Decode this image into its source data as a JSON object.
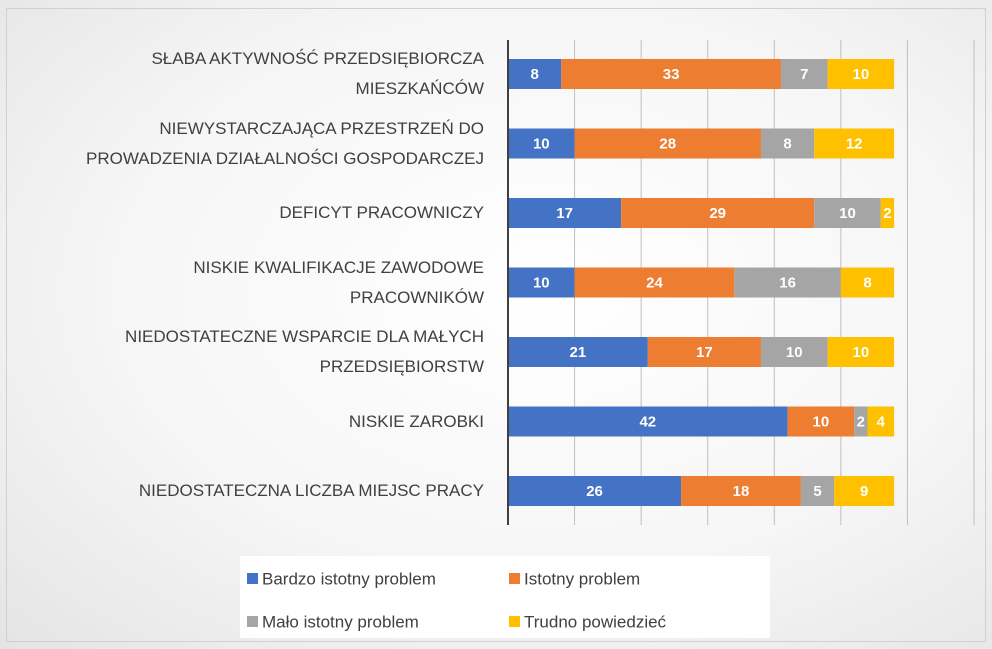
{
  "chart_data": {
    "type": "stacked-bar-horizontal",
    "categories": [
      "SŁABA AKTYWNOŚĆ PRZEDSIĘBIORCZA\nMIESZKAŃCÓW",
      "NIEWYSTARCZAJĄCA PRZESTRZEŃ DO\nPROWADZENIA DZIAŁALNOŚCI GOSPODARCZEJ",
      "DEFICYT PRACOWNICZY",
      "NISKIE KWALIFIKACJE ZAWODOWE\nPRACOWNIKÓW",
      "NIEDOSTATECZNE WSPARCIE DLA MAŁYCH\nPRZEDSIĘBIORSTW",
      "NISKIE ZAROBKI",
      "NIEDOSTATECZNA LICZBA MIEJSC PRACY"
    ],
    "series": [
      {
        "name": "Bardzo istotny problem",
        "color": "#4472c4",
        "values": [
          8,
          10,
          17,
          10,
          21,
          42,
          26
        ]
      },
      {
        "name": "Istotny problem",
        "color": "#ed7d31",
        "values": [
          33,
          28,
          29,
          24,
          17,
          10,
          18
        ]
      },
      {
        "name": "Mało istotny problem",
        "color": "#a5a5a5",
        "values": [
          7,
          8,
          10,
          16,
          10,
          2,
          5
        ]
      },
      {
        "name": "Trudno powiedzieć",
        "color": "#ffc000",
        "values": [
          10,
          12,
          2,
          8,
          10,
          4,
          9
        ]
      }
    ],
    "xlim": [
      0,
      70
    ],
    "xticks": [
      0,
      10,
      20,
      30,
      40,
      50,
      60,
      70
    ],
    "grid": true
  }
}
